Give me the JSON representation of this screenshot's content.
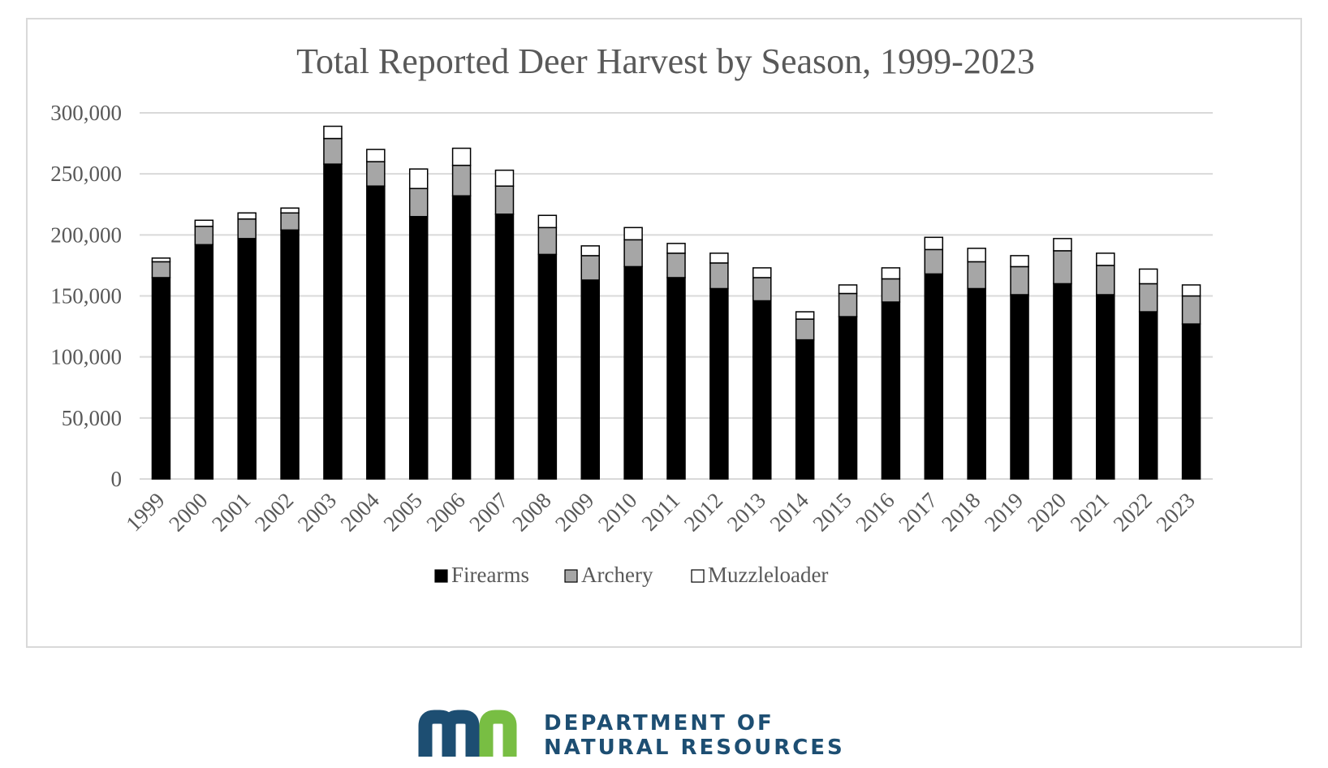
{
  "chart_data": {
    "type": "bar",
    "stacked": true,
    "title": "Total Reported Deer Harvest by Season, 1999-2023",
    "xlabel": "",
    "ylabel": "",
    "ylim": [
      0,
      300000
    ],
    "yticks": [
      0,
      50000,
      100000,
      150000,
      200000,
      250000,
      300000
    ],
    "ytick_labels": [
      "0",
      "50,000",
      "100,000",
      "150,000",
      "200,000",
      "250,000",
      "300,000"
    ],
    "grid": true,
    "legend_position": "bottom",
    "categories": [
      "1999",
      "2000",
      "2001",
      "2002",
      "2003",
      "2004",
      "2005",
      "2006",
      "2007",
      "2008",
      "2009",
      "2010",
      "2011",
      "2012",
      "2013",
      "2014",
      "2015",
      "2016",
      "2017",
      "2018",
      "2019",
      "2020",
      "2021",
      "2022",
      "2023"
    ],
    "series": [
      {
        "name": "Firearms",
        "color": "#000000",
        "values": [
          165000,
          192000,
          197000,
          204000,
          258000,
          240000,
          215000,
          232000,
          217000,
          184000,
          163000,
          174000,
          165000,
          156000,
          146000,
          114000,
          133000,
          145000,
          168000,
          156000,
          151000,
          160000,
          151000,
          137000,
          127000
        ]
      },
      {
        "name": "Archery",
        "color": "#a6a6a6",
        "values": [
          13000,
          15000,
          16000,
          14000,
          21000,
          20000,
          23000,
          25000,
          23000,
          22000,
          20000,
          22000,
          20000,
          21000,
          19000,
          17000,
          19000,
          19000,
          20000,
          22000,
          23000,
          27000,
          24000,
          23000,
          23000
        ]
      },
      {
        "name": "Muzzleloader",
        "color": "#ffffff",
        "values": [
          3000,
          5000,
          5000,
          4000,
          10000,
          10000,
          16000,
          14000,
          13000,
          10000,
          8000,
          10000,
          8000,
          8000,
          8000,
          6000,
          7000,
          9000,
          10000,
          11000,
          9000,
          10000,
          10000,
          12000,
          9000
        ]
      }
    ]
  },
  "footer": {
    "org_line1": "DEPARTMENT OF",
    "org_line2": "NATURAL RESOURCES",
    "logo_colors": {
      "m": "#1d4e72",
      "n": "#78be43"
    }
  }
}
